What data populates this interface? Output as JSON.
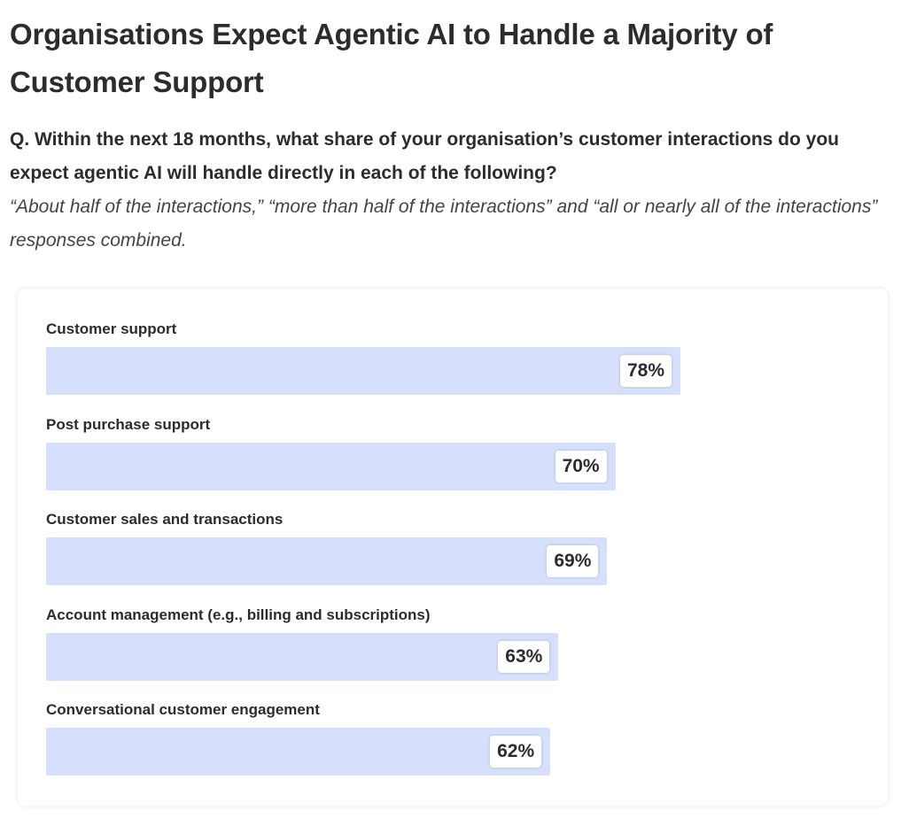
{
  "header": {
    "title": "Organisations Expect Agentic AI to Handle a Majority of Customer Support",
    "question": "Q. Within the next 18 months, what share of your organisation’s customer interactions do you expect agentic AI will handle directly in each of the following?",
    "note": "“About half of the interactions,” “more than half of the interactions” and “all or nearly all of the interactions” responses combined."
  },
  "colors": {
    "bar": "#d6dffb",
    "text": "#2c2c2c"
  },
  "chart_data": {
    "type": "bar",
    "orientation": "horizontal",
    "categories": [
      "Customer support",
      "Post purchase support",
      "Customer sales and transactions",
      "Account management (e.g., billing and subscriptions)",
      "Conversational customer engagement"
    ],
    "values": [
      78,
      70,
      69,
      63,
      62
    ],
    "value_labels": [
      "78%",
      "70%",
      "69%",
      "63%",
      "62%"
    ],
    "unit": "%",
    "xlim": [
      0,
      100
    ],
    "grid": false,
    "legend": "none"
  }
}
